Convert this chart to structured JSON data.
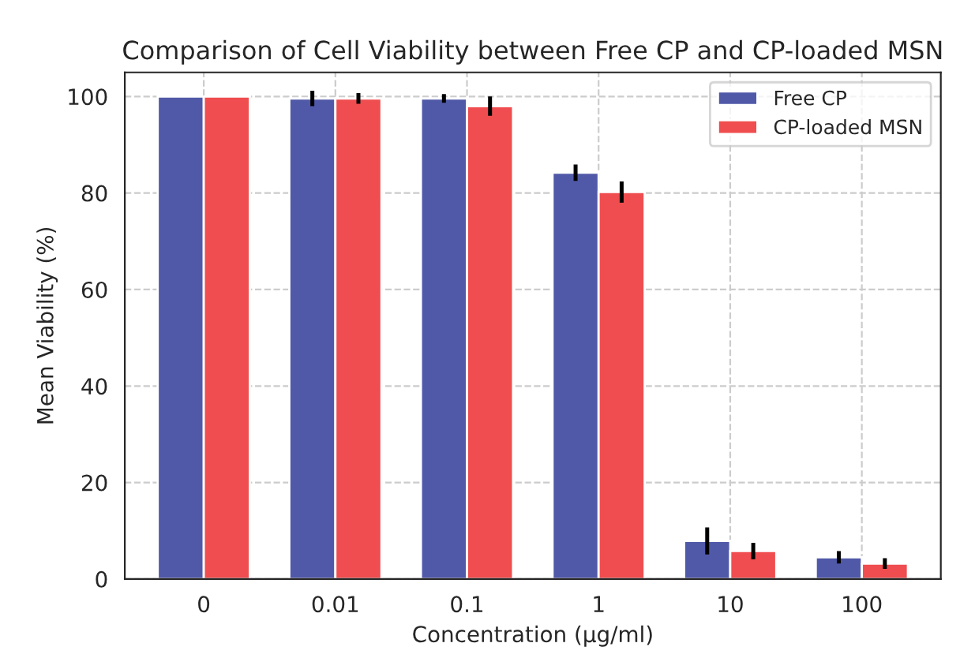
{
  "chart_data": {
    "type": "bar",
    "title": "Comparison of Cell Viability between Free CP and CP-loaded MSN",
    "xlabel": "Concentration (µg/ml)",
    "ylabel": "Mean Viability (%)",
    "categories": [
      "0",
      "0.01",
      "0.1",
      "1",
      "10",
      "100"
    ],
    "series": [
      {
        "name": "Free CP",
        "color": "#5059a8",
        "values": [
          100,
          99.6,
          99.6,
          84.2,
          7.9,
          4.5
        ],
        "errors": [
          null,
          1.6,
          0.9,
          1.7,
          2.8,
          1.3
        ]
      },
      {
        "name": "CP-loaded MSN",
        "color": "#ef4d4f",
        "values": [
          100,
          99.6,
          98.0,
          80.2,
          5.8,
          3.2
        ],
        "errors": [
          null,
          1.1,
          2.0,
          2.2,
          1.7,
          1.1
        ]
      }
    ],
    "ylim": [
      0,
      105
    ],
    "yticks": [
      0,
      20,
      40,
      60,
      80,
      100
    ],
    "grid": true,
    "legend": "top right"
  }
}
